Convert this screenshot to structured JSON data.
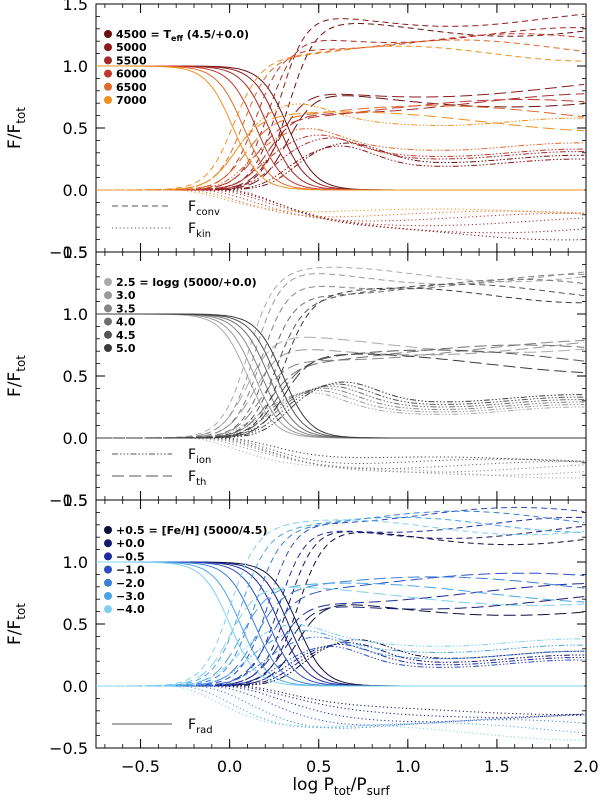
{
  "chart_data": [
    {
      "type": "line",
      "panel": "top",
      "ylabel": "F/F_tot",
      "ylabel_main": "F/F",
      "ylabel_sub": "tot",
      "xlim": [
        -0.75,
        2.0
      ],
      "ylim": [
        -0.5,
        1.5
      ],
      "yticks": [
        "−0.5",
        "0.0",
        "0.5",
        "1.0",
        "1.5"
      ],
      "legend_title": "= T",
      "legend_title_sub": "eff",
      "legend_title_suffix": " (4.5/+0.0)",
      "legend": [
        {
          "label": "4500",
          "color": "#6b0f0f",
          "x0": 0.33,
          "upper": 1.3,
          "lower": 0.25,
          "kin": -0.35
        },
        {
          "label": "5000",
          "color": "#8b1a1a",
          "x0": 0.28,
          "upper": 1.38,
          "lower": 0.22,
          "kin": -0.3
        },
        {
          "label": "5500",
          "color": "#a52a2a",
          "x0": 0.22,
          "upper": 1.25,
          "lower": 0.28,
          "kin": -0.25
        },
        {
          "label": "6000",
          "color": "#c0392b",
          "x0": 0.15,
          "upper": 1.2,
          "lower": 0.3,
          "kin": -0.22
        },
        {
          "label": "6500",
          "color": "#e06a2a",
          "x0": 0.08,
          "upper": 1.15,
          "lower": 0.35,
          "kin": -0.2
        },
        {
          "label": "7000",
          "color": "#f0901f",
          "x0": 0.02,
          "upper": 1.1,
          "lower": 0.55,
          "kin": -0.18
        }
      ],
      "line_legend": [
        {
          "style": "dashed",
          "label": "F",
          "sub": "conv"
        },
        {
          "style": "dotted",
          "label": "F",
          "sub": "kin"
        }
      ]
    },
    {
      "type": "line",
      "panel": "middle",
      "ylabel": "F/F_tot",
      "ylabel_main": "F/F",
      "ylabel_sub": "tot",
      "xlim": [
        -0.75,
        2.0
      ],
      "ylim": [
        -0.5,
        1.5
      ],
      "yticks": [
        "−0.5",
        "0.0",
        "0.5",
        "1.0",
        "1.5"
      ],
      "legend_title": "= logg (5000/+0.0)",
      "legend_title_sub": "",
      "legend_title_suffix": "",
      "legend": [
        {
          "label": "2.5",
          "color": "#aaaaaa",
          "x0": 0.1,
          "upper": 1.32,
          "lower": 0.22,
          "kin": -0.28
        },
        {
          "label": "3.0",
          "color": "#999999",
          "x0": 0.14,
          "upper": 1.3,
          "lower": 0.24,
          "kin": -0.26
        },
        {
          "label": "3.5",
          "color": "#858585",
          "x0": 0.18,
          "upper": 1.26,
          "lower": 0.26,
          "kin": -0.24
        },
        {
          "label": "4.0",
          "color": "#6e6e6e",
          "x0": 0.22,
          "upper": 1.22,
          "lower": 0.28,
          "kin": -0.22
        },
        {
          "label": "4.5",
          "color": "#555555",
          "x0": 0.26,
          "upper": 1.18,
          "lower": 0.3,
          "kin": -0.2
        },
        {
          "label": "5.0",
          "color": "#3a3a3a",
          "x0": 0.3,
          "upper": 1.15,
          "lower": 0.32,
          "kin": -0.18
        }
      ],
      "line_legend": [
        {
          "style": "dashdot3",
          "label": "F",
          "sub": "ion"
        },
        {
          "style": "longdash",
          "label": "F",
          "sub": "th"
        }
      ]
    },
    {
      "type": "line",
      "panel": "bottom",
      "ylabel": "F/F_tot",
      "ylabel_main": "F/F",
      "ylabel_sub": "tot",
      "xlabel": "log P_tot/P_surf",
      "xlabel_main": "log P",
      "xlabel_sub1": "tot",
      "xlabel_mid": "/P",
      "xlabel_sub2": "surf",
      "xlim": [
        -0.75,
        2.0
      ],
      "ylim": [
        -0.5,
        1.5
      ],
      "xticks": [
        "−0.5",
        "0.0",
        "0.5",
        "1.0",
        "1.5",
        "2.0"
      ],
      "yticks": [
        "−0.5",
        "0.0",
        "0.5",
        "1.0",
        "1.5"
      ],
      "legend_title": "= [Fe/H] (5000/4.5)",
      "legend_title_sub": "",
      "legend_title_suffix": "",
      "legend": [
        {
          "label": "+0.5",
          "color": "#0d0d3a",
          "x0": 0.38,
          "upper": 1.2,
          "lower": 0.25,
          "kin": -0.2
        },
        {
          "label": "+0.0",
          "color": "#141a6b",
          "x0": 0.33,
          "upper": 1.25,
          "lower": 0.22,
          "kin": -0.22
        },
        {
          "label": "−0.5",
          "color": "#1c2a9c",
          "x0": 0.28,
          "upper": 1.3,
          "lower": 0.2,
          "kin": -0.25
        },
        {
          "label": "−1.0",
          "color": "#2a4fc0",
          "x0": 0.22,
          "upper": 1.38,
          "lower": 0.18,
          "kin": -0.28
        },
        {
          "label": "−2.0",
          "color": "#3a7fd8",
          "x0": 0.14,
          "upper": 1.35,
          "lower": 0.25,
          "kin": -0.32
        },
        {
          "label": "−3.0",
          "color": "#4aa5e6",
          "x0": 0.06,
          "upper": 1.3,
          "lower": 0.3,
          "kin": -0.35
        },
        {
          "label": "−4.0",
          "color": "#7fd0f0",
          "x0": 0.0,
          "upper": 1.28,
          "lower": 0.35,
          "kin": -0.38
        }
      ],
      "line_legend": [
        {
          "style": "solid",
          "label": "F",
          "sub": "rad"
        }
      ]
    }
  ]
}
